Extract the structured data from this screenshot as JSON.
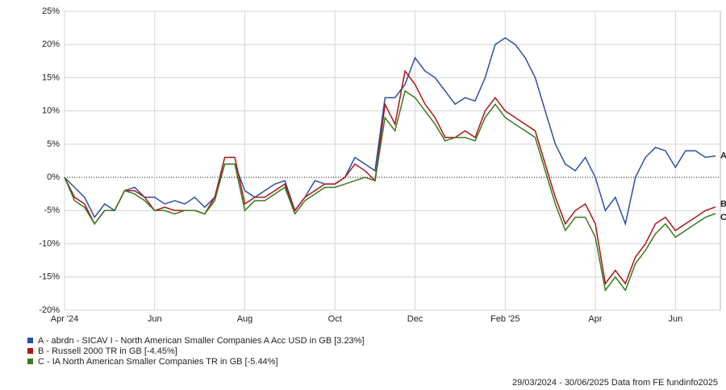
{
  "chart_data": {
    "type": "line",
    "categories": [
      "Apr '24",
      null,
      null,
      null,
      null,
      null,
      null,
      null,
      null,
      "Jun",
      null,
      null,
      null,
      null,
      null,
      null,
      null,
      null,
      "Aug",
      null,
      null,
      null,
      null,
      null,
      null,
      null,
      null,
      "Oct",
      null,
      null,
      null,
      null,
      null,
      null,
      null,
      "Dec",
      null,
      null,
      null,
      null,
      null,
      null,
      null,
      null,
      "Feb '25",
      null,
      null,
      null,
      null,
      null,
      null,
      null,
      null,
      "Apr",
      null,
      null,
      null,
      null,
      null,
      null,
      null,
      "Jun",
      null,
      null,
      null,
      null
    ],
    "ylim": [
      -20,
      25
    ],
    "yticks": [
      {
        "value": -20,
        "label": "-20%"
      },
      {
        "value": -15,
        "label": "-15%"
      },
      {
        "value": -10,
        "label": "-10%"
      },
      {
        "value": -5,
        "label": "-5%"
      },
      {
        "value": 0,
        "label": "0%"
      },
      {
        "value": 5,
        "label": "5%"
      },
      {
        "value": 10,
        "label": "10%"
      },
      {
        "value": 15,
        "label": "15%"
      },
      {
        "value": 20,
        "label": "20%"
      },
      {
        "value": 25,
        "label": "25%"
      }
    ],
    "grid": true,
    "series": [
      {
        "name": "A - abrdn - SICAV I - North American Smaller Companies A Acc USD in GB [3.23%]",
        "tag": "A",
        "color": "#2a4fa8",
        "values": [
          0,
          -1.5,
          -3,
          -6,
          -4,
          -5,
          -2,
          -1.5,
          -3,
          -3,
          -4,
          -3.5,
          -4,
          -3,
          -4.5,
          -3,
          2,
          2,
          -2,
          -3,
          -2,
          -1,
          -0.5,
          -5,
          -3,
          -0.5,
          -1,
          -1,
          0,
          3,
          2,
          1,
          12,
          12,
          14,
          18,
          16,
          15,
          13,
          11,
          12,
          11.5,
          15,
          20,
          21,
          20,
          18,
          15,
          10,
          5,
          2,
          1,
          3,
          0,
          -5,
          -3,
          -7,
          0,
          3,
          4.5,
          4,
          1.5,
          4,
          4,
          3,
          3.23
        ]
      },
      {
        "name": "B - Russell 2000 TR in GB [-4.45%]",
        "tag": "B",
        "color": "#b01414",
        "values": [
          0,
          -3,
          -4,
          -7,
          -5,
          -5,
          -2,
          -2,
          -3,
          -5,
          -4.5,
          -5,
          -5,
          -5,
          -5.5,
          -3,
          3,
          3,
          -4,
          -3,
          -3,
          -2,
          -1,
          -5,
          -3,
          -2,
          -1,
          -1,
          0,
          2,
          1,
          -0.5,
          11,
          8,
          16,
          14,
          11,
          9,
          6,
          6,
          7,
          6,
          10,
          12,
          10,
          9,
          8,
          7,
          2,
          -3,
          -7,
          -5,
          -4,
          -7,
          -16,
          -14,
          -16,
          -12,
          -10,
          -7,
          -6,
          -8,
          -7,
          -6,
          -5,
          -4.45
        ]
      },
      {
        "name": "C - IA North American Smaller Companies TR in GB [-5.44%]",
        "tag": "C",
        "color": "#3a7a1e",
        "values": [
          0,
          -3.5,
          -4.5,
          -7,
          -5,
          -5,
          -2,
          -2.5,
          -3.5,
          -5,
          -5,
          -5.5,
          -5,
          -5,
          -5.5,
          -3.5,
          2,
          2,
          -5,
          -3.5,
          -3.5,
          -2.5,
          -1.5,
          -5.5,
          -3.5,
          -2.5,
          -1.5,
          -1.5,
          -1,
          -0.5,
          0,
          -0.5,
          9,
          7,
          13,
          12,
          10,
          8,
          5.5,
          6,
          6,
          5.5,
          9,
          11,
          9,
          8,
          7,
          6,
          1,
          -4,
          -8,
          -6,
          -6,
          -9,
          -17,
          -15,
          -17,
          -13,
          -11,
          -8.5,
          -7,
          -9,
          -8,
          -7,
          -6,
          -5.44
        ]
      }
    ],
    "footer": "29/03/2024 - 30/06/2025 Data from FE fundinfo2025"
  }
}
